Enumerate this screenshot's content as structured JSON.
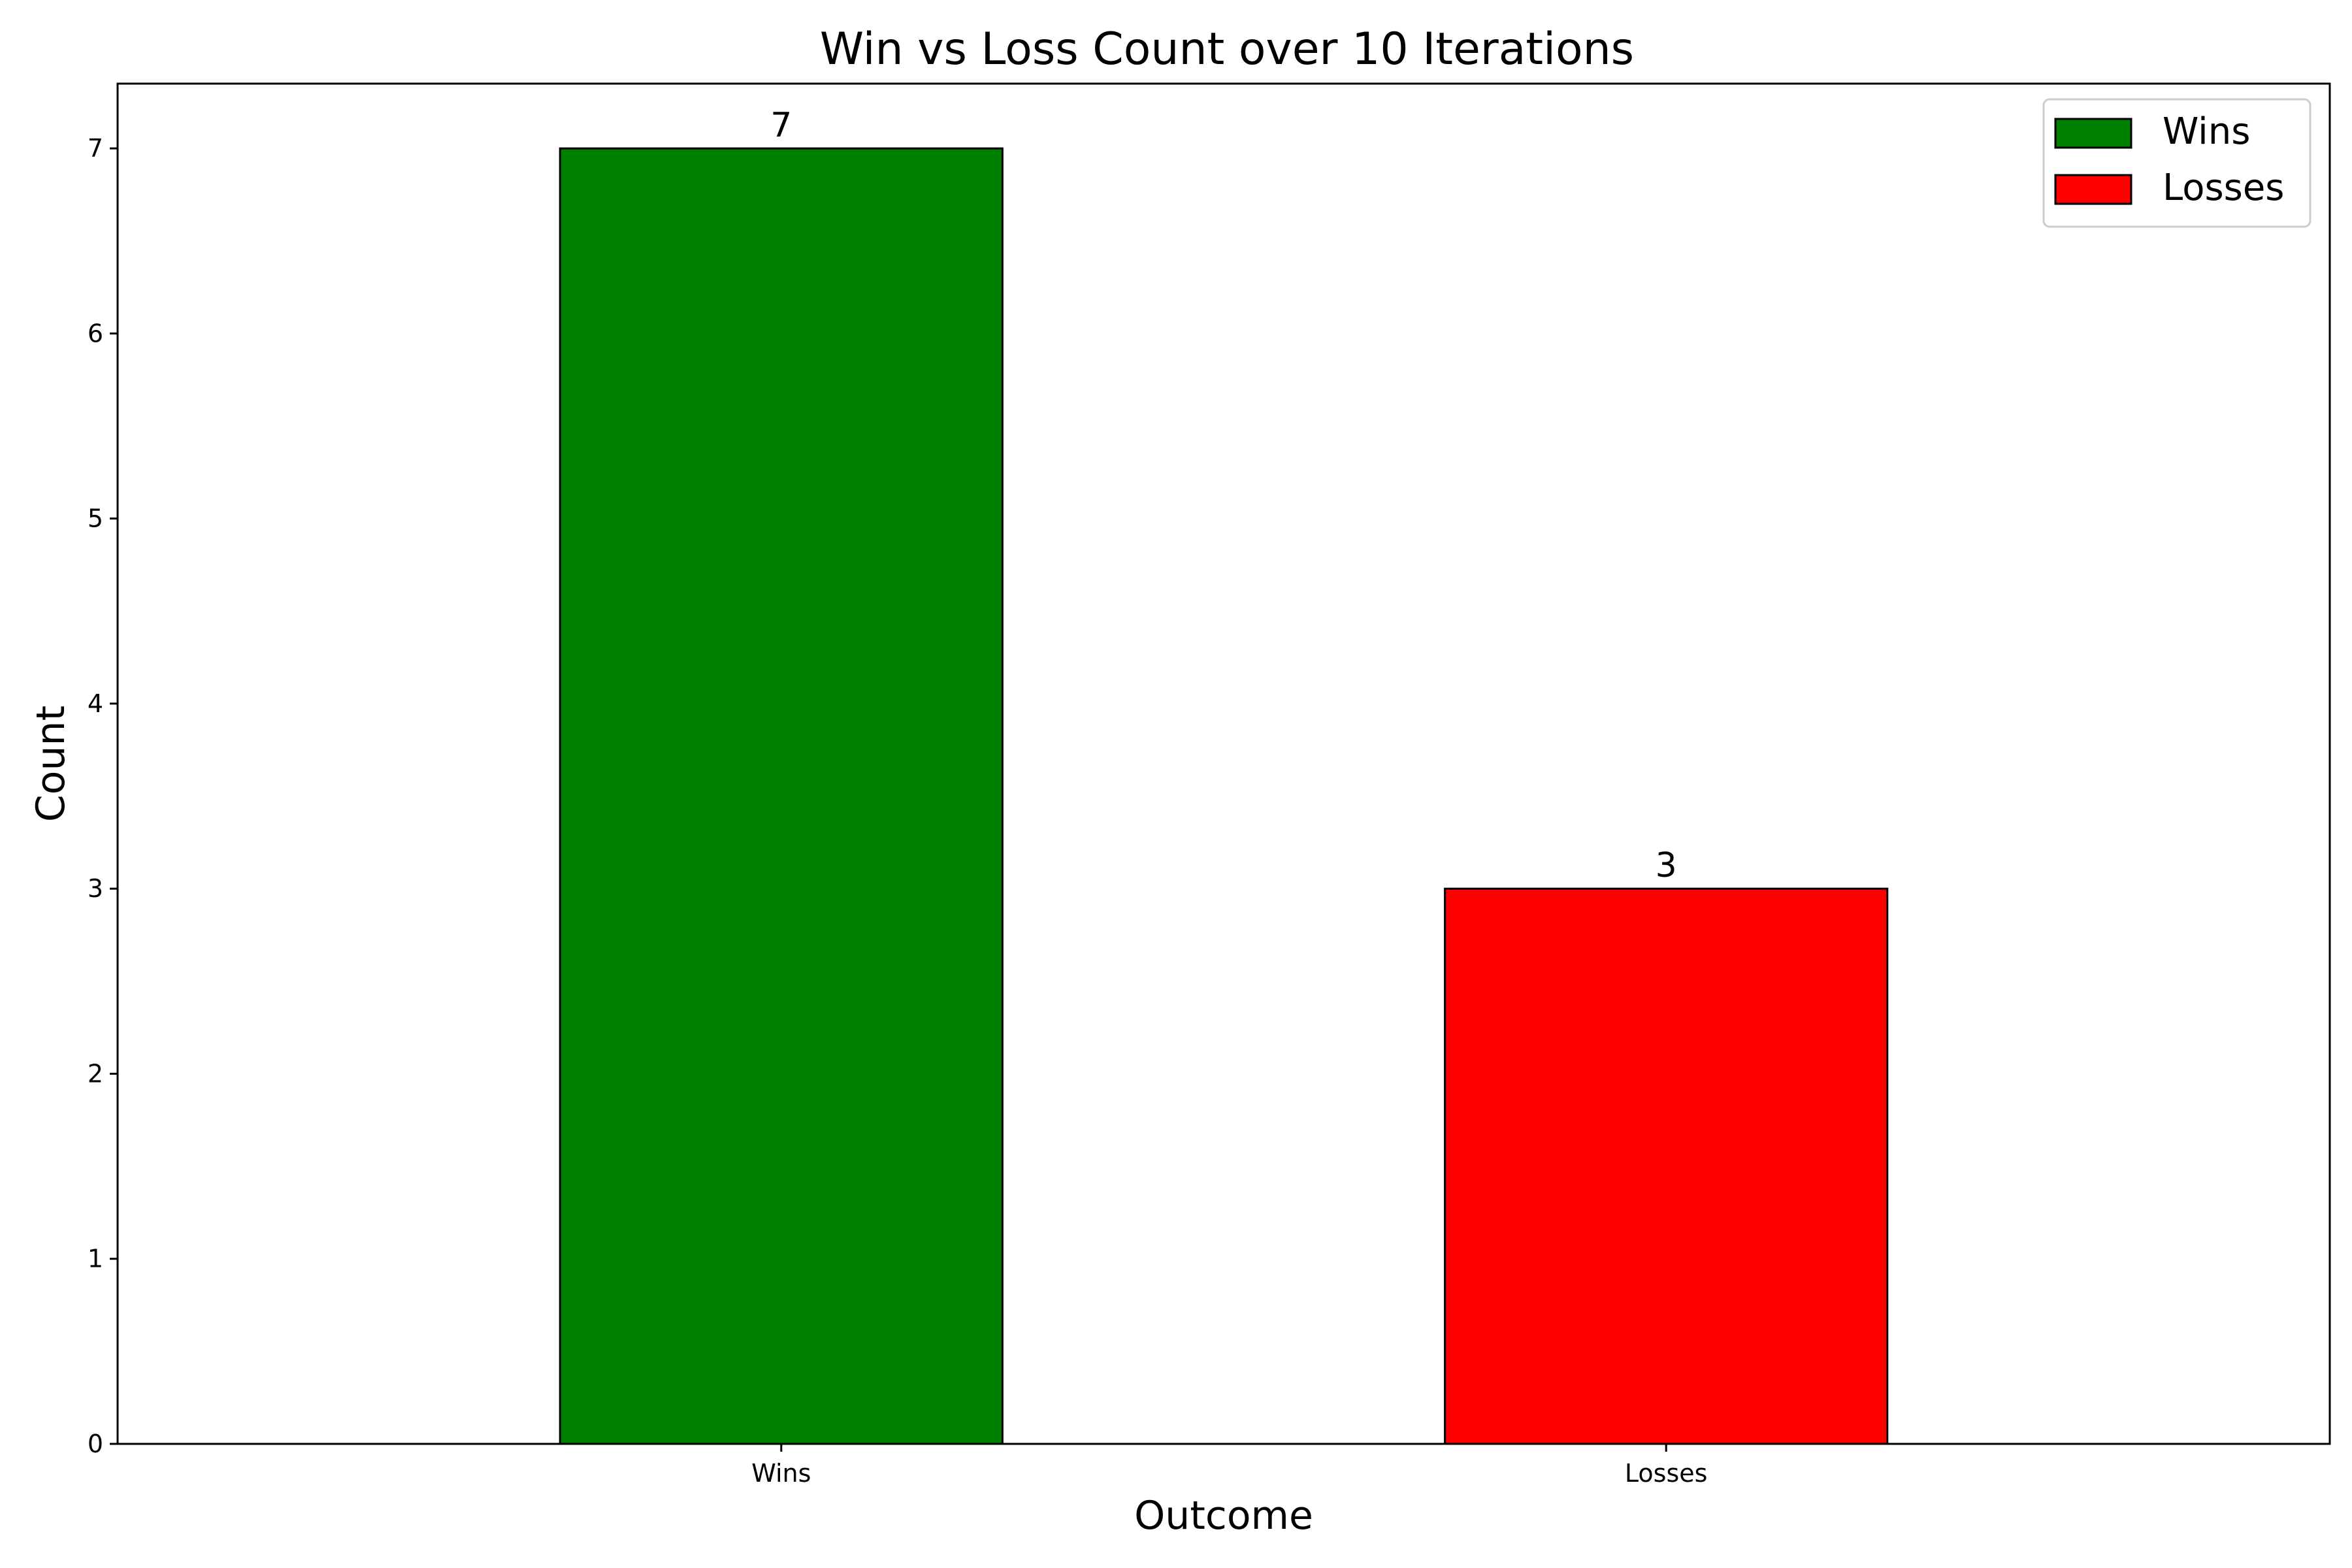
{
  "chart_data": {
    "type": "bar",
    "title": "Win vs Loss Count over 10 Iterations",
    "xlabel": "Outcome",
    "ylabel": "Count",
    "categories": [
      "Wins",
      "Losses"
    ],
    "values": [
      7,
      3
    ],
    "data_labels": [
      "7",
      "3"
    ],
    "colors": [
      "#008000",
      "#ff0000"
    ],
    "edge_color": "#000000",
    "ylim": [
      0,
      7.35
    ],
    "yticks": [
      0,
      1,
      2,
      3,
      4,
      5,
      6,
      7
    ],
    "grid": false,
    "legend": {
      "placement": "top-right",
      "entries": [
        {
          "label": "Wins",
          "color": "#008000"
        },
        {
          "label": "Losses",
          "color": "#ff0000"
        }
      ]
    }
  }
}
